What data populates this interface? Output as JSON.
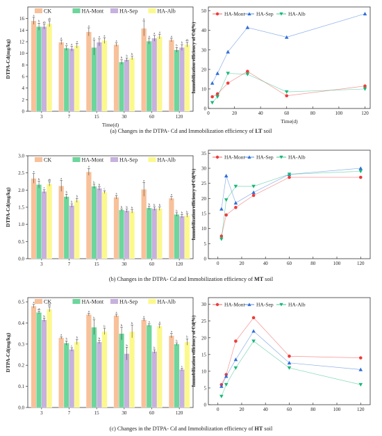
{
  "colors": {
    "CK": "#f8c19a",
    "HA_Mont": "#6cd69b",
    "HA_Sep": "#c7b1de",
    "HA_Alb": "#fcf98c",
    "line_Mont": "#ee3b3b",
    "line_Sep": "#2f6fd8",
    "line_Alb": "#18b878",
    "frame": "#333333"
  },
  "panels": [
    {
      "caption_prefix": "(a) Changes in the DTPA- Cd and Immobilization efficiency of ",
      "soil": "LT",
      "caption_suffix": " soil"
    },
    {
      "caption_prefix": "(b) Changes in the DTPA- Cd and Immobilization efficiency of ",
      "soil": "MT",
      "caption_suffix": " soil"
    },
    {
      "caption_prefix": "(c) Changes in the DTPA- Cd and Immobilization efficiency of ",
      "soil": "HT",
      "caption_suffix": " soil"
    }
  ],
  "chart_data": [
    {
      "type": "bar",
      "panel": "a",
      "ylabel": "DTPA-Cd(mg/kg)",
      "xlabel": "Time(d)",
      "categories": [
        "3",
        "7",
        "15",
        "30",
        "60",
        "120"
      ],
      "ylim": [
        0,
        18
      ],
      "yticks": [
        0,
        2,
        4,
        6,
        8,
        10,
        12,
        14,
        16
      ],
      "legend": [
        "CK",
        "HA-Mont",
        "HA-Sep",
        "HA-Alb"
      ],
      "series": [
        {
          "name": "CK",
          "values": [
            15.6,
            11.9,
            13.7,
            11.5,
            14.3,
            12.3
          ]
        },
        {
          "name": "HA-Mont",
          "values": [
            14.6,
            10.9,
            11.0,
            8.5,
            12.1,
            10.6
          ]
        },
        {
          "name": "HA-Sep",
          "values": [
            14.6,
            10.8,
            11.9,
            8.9,
            12.6,
            11.0
          ]
        },
        {
          "name": "HA-Alb",
          "values": [
            15.1,
            11.3,
            12.2,
            9.2,
            12.9,
            11.5
          ]
        }
      ],
      "errors": [
        [
          0.6,
          0.4,
          0.7,
          0.3,
          1.3,
          0.3
        ],
        [
          0.6,
          0.4,
          1.3,
          0.4,
          0.5,
          0.4
        ],
        [
          0.4,
          0.4,
          0.6,
          0.3,
          0.5,
          0.5
        ],
        [
          0.5,
          0.4,
          0.5,
          0.3,
          0.4,
          0.4
        ]
      ],
      "sig": [
        [
          "a",
          "a",
          "a",
          "a",
          "a",
          "a"
        ],
        [
          "b",
          "a",
          "a",
          "b",
          "a",
          "b"
        ],
        [
          "ab",
          "a",
          "a",
          "b",
          "a",
          "b"
        ],
        [
          "ab",
          "a",
          "a",
          "b",
          "a",
          "ab"
        ]
      ]
    },
    {
      "type": "line",
      "panel": "a",
      "ylabel": "Immobilization efficiency of Cd(%)",
      "xlabel": "Time(d)",
      "xlim": [
        0,
        124
      ],
      "xticks": [
        0,
        20,
        40,
        60,
        80,
        100,
        120
      ],
      "ylim": [
        0,
        52
      ],
      "yticks": [
        0,
        10,
        20,
        30,
        40,
        50
      ],
      "series": [
        {
          "name": "HA-Mont",
          "x": [
            3,
            7,
            15,
            30,
            60,
            120
          ],
          "y": [
            6,
            7.5,
            13,
            19,
            6.5,
            11.5
          ]
        },
        {
          "name": "HA-Sep",
          "x": [
            3,
            7,
            15,
            30,
            60,
            120
          ],
          "y": [
            13,
            18,
            29,
            41.5,
            36.5,
            48.5
          ]
        },
        {
          "name": "HA-Alb",
          "x": [
            3,
            7,
            15,
            30,
            60,
            120
          ],
          "y": [
            3,
            6,
            18,
            17.5,
            8.5,
            10
          ]
        }
      ]
    },
    {
      "type": "bar",
      "panel": "b",
      "ylabel": "DTPA-Cd(mg/kg)",
      "xlabel": "",
      "categories": [
        "3",
        "7",
        "15",
        "30",
        "60",
        "120"
      ],
      "ylim": [
        0,
        3.0
      ],
      "yticks": [
        0.0,
        0.5,
        1.0,
        1.5,
        2.0,
        2.5,
        3.0
      ],
      "legend": [
        "CK",
        "HA-Mont",
        "HA-Sep",
        "HA-Alb"
      ],
      "series": [
        {
          "name": "CK",
          "values": [
            2.34,
            2.12,
            2.53,
            1.79,
            2.02,
            1.76
          ]
        },
        {
          "name": "HA-Mont",
          "values": [
            2.16,
            1.81,
            2.11,
            1.42,
            1.48,
            1.29
          ]
        },
        {
          "name": "HA-Sep",
          "values": [
            1.96,
            1.55,
            2.05,
            1.4,
            1.46,
            1.24
          ]
        },
        {
          "name": "HA-Alb",
          "values": [
            2.18,
            1.7,
            1.94,
            1.38,
            1.46,
            1.26
          ]
        }
      ],
      "errors": [
        [
          0.14,
          0.16,
          0.1,
          0.05,
          0.2,
          0.05
        ],
        [
          0.1,
          0.07,
          0.06,
          0.03,
          0.05,
          0.05
        ],
        [
          0.05,
          0.05,
          0.05,
          0.05,
          0.05,
          0.05
        ],
        [
          0.06,
          0.06,
          0.04,
          0.05,
          0.05,
          0.05
        ]
      ],
      "sig": [
        [
          "a",
          "a",
          "a",
          "a",
          "a",
          "a"
        ],
        [
          "b",
          "b",
          "b",
          "b",
          "b",
          "b"
        ],
        [
          "c",
          "b",
          "b",
          "b",
          "b",
          "b"
        ],
        [
          "ab",
          "b",
          "c",
          "b",
          "b",
          "b"
        ]
      ]
    },
    {
      "type": "line",
      "panel": "b",
      "ylabel": "Immobilization efficiency of Cd(%)",
      "xlabel": "",
      "xlim": [
        -8,
        128
      ],
      "xticks": [
        0,
        20,
        40,
        60,
        80,
        100,
        120
      ],
      "ylim": [
        0,
        36
      ],
      "yticks": [
        0,
        5,
        10,
        15,
        20,
        25,
        30,
        35
      ],
      "series": [
        {
          "name": "HA-Mont",
          "x": [
            3,
            7,
            15,
            30,
            60,
            120
          ],
          "y": [
            7.5,
            14.5,
            17,
            21,
            27,
            27
          ]
        },
        {
          "name": "HA-Sep",
          "x": [
            3,
            7,
            15,
            30,
            60,
            120
          ],
          "y": [
            16.5,
            27.5,
            18.5,
            22,
            28,
            30
          ]
        },
        {
          "name": "HA-Alb",
          "x": [
            3,
            7,
            15,
            30,
            60,
            120
          ],
          "y": [
            6.5,
            19.5,
            24,
            24,
            28,
            29
          ]
        }
      ]
    },
    {
      "type": "bar",
      "panel": "c",
      "ylabel": "DTPA-Cd(mg/kg)",
      "xlabel": "",
      "categories": [
        "3",
        "7",
        "15",
        "30",
        "60",
        "120"
      ],
      "ylim": [
        0,
        0.52
      ],
      "yticks": [
        0.0,
        0.1,
        0.2,
        0.3,
        0.4,
        0.5
      ],
      "legend": [
        "CK",
        "HA-Mont",
        "HA-Sep",
        "HA-Alb"
      ],
      "series": [
        {
          "name": "CK",
          "values": [
            0.48,
            0.33,
            0.44,
            0.435,
            0.415,
            0.34
          ]
        },
        {
          "name": "HA-Mont",
          "values": [
            0.45,
            0.305,
            0.38,
            0.35,
            0.39,
            0.3
          ]
        },
        {
          "name": "HA-Sep",
          "values": [
            0.415,
            0.275,
            0.31,
            0.255,
            0.265,
            0.18
          ]
        },
        {
          "name": "HA-Alb",
          "values": [
            0.465,
            0.31,
            0.36,
            0.36,
            0.385,
            0.31
          ]
        }
      ],
      "errors": [
        [
          0.008,
          0.005,
          0.006,
          0.006,
          0.006,
          0.01
        ],
        [
          0.006,
          0.01,
          0.035,
          0.03,
          0.006,
          0.006
        ],
        [
          0.008,
          0.008,
          0.007,
          0.03,
          0.008,
          0.006
        ],
        [
          0.012,
          0.012,
          0.015,
          0.03,
          0.01,
          0.015
        ]
      ],
      "sig": [
        [
          "a",
          "a",
          "a",
          "a",
          "a",
          "a"
        ],
        [
          "ab",
          "b",
          "b",
          "b",
          "a",
          "b"
        ],
        [
          "b",
          "c",
          "b",
          "b",
          "b",
          "c"
        ],
        [
          "ab",
          "b",
          "b",
          "b",
          "a",
          "b"
        ]
      ]
    },
    {
      "type": "line",
      "panel": "c",
      "ylabel": "Immobilization efficiency of Cd(%)",
      "xlabel": "",
      "xlim": [
        -8,
        128
      ],
      "xticks": [
        0,
        20,
        40,
        60,
        80,
        100,
        120
      ],
      "ylim": [
        0,
        32
      ],
      "yticks": [
        0,
        5,
        10,
        15,
        20,
        25,
        30
      ],
      "series": [
        {
          "name": "HA-Mont",
          "x": [
            3,
            7,
            15,
            30,
            60,
            120
          ],
          "y": [
            6,
            9,
            19,
            26,
            14.5,
            14
          ]
        },
        {
          "name": "HA-Sep",
          "x": [
            3,
            7,
            15,
            30,
            60,
            120
          ],
          "y": [
            5.5,
            8.5,
            13.5,
            22,
            12.5,
            10.5
          ]
        },
        {
          "name": "HA-Alb",
          "x": [
            3,
            7,
            15,
            30,
            60,
            120
          ],
          "y": [
            2.5,
            6,
            11,
            19,
            11,
            6
          ]
        }
      ]
    }
  ]
}
